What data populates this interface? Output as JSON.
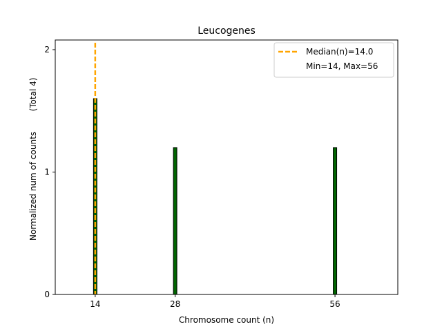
{
  "chart_data": {
    "type": "bar",
    "title": "Leucogenes",
    "xlabel": "Chromosome count (n)",
    "ylabel": "Normalized num of counts",
    "ylabel_note": "(Total 4)",
    "xlim": [
      7,
      67
    ],
    "ylim": [
      0,
      2.0
    ],
    "x_ticks": [
      14,
      28,
      56
    ],
    "y_ticks": [
      0,
      1,
      2
    ],
    "x_tick_labels": [
      "14",
      "28",
      "56"
    ],
    "y_tick_labels": [
      "0",
      "1",
      "2"
    ],
    "bars": [
      {
        "x": 14,
        "value": 1.6
      },
      {
        "x": 28,
        "value": 1.2
      },
      {
        "x": 56,
        "value": 1.2
      }
    ],
    "bar_color": "#006400",
    "bar_edge_color": "#000000",
    "median_line": {
      "x": 14.0,
      "color": "#ffa500",
      "style": "dashed"
    },
    "legend": {
      "position": "top-right",
      "entries": [
        "Median(n)=14.0",
        "Min=14, Max=56"
      ]
    },
    "grid": false
  }
}
